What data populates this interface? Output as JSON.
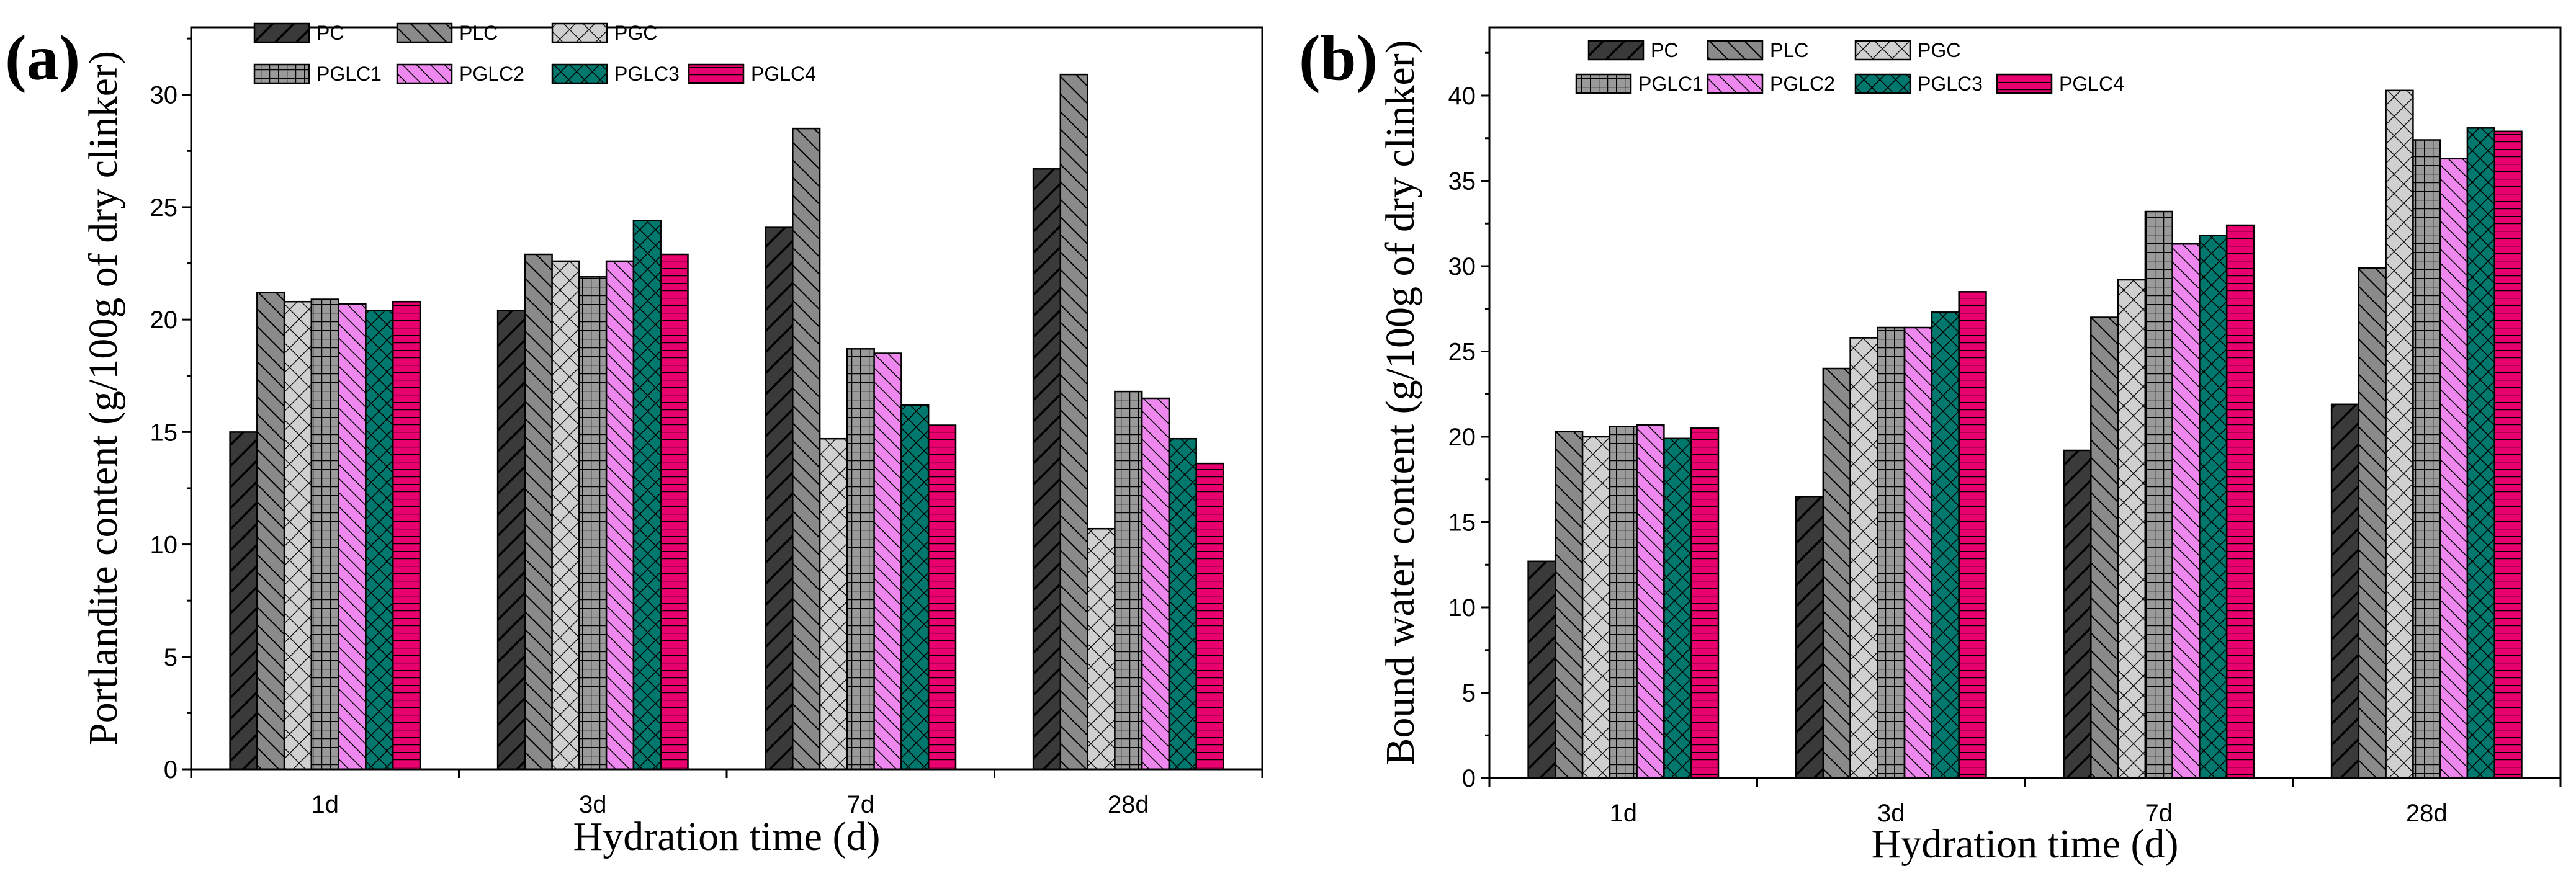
{
  "chart_data": [
    {
      "panel_label": "(a)",
      "type": "bar",
      "title": "",
      "xlabel": "Hydration time (d)",
      "ylabel": "Portlandite content (g/100g of dry clinker)",
      "categories": [
        "1d",
        "3d",
        "7d",
        "28d"
      ],
      "ylim": [
        0,
        33
      ],
      "yticks": [
        0,
        5,
        10,
        15,
        20,
        25,
        30
      ],
      "legend_position": "top-left",
      "series": [
        {
          "name": "PC",
          "pattern": "pc",
          "values": [
            15.0,
            20.4,
            24.1,
            26.7
          ]
        },
        {
          "name": "PLC",
          "pattern": "plc",
          "values": [
            21.2,
            22.9,
            28.5,
            30.9
          ]
        },
        {
          "name": "PGC",
          "pattern": "pgc",
          "values": [
            20.8,
            22.6,
            14.7,
            10.7
          ]
        },
        {
          "name": "PGLC1",
          "pattern": "pglc1",
          "values": [
            20.9,
            21.9,
            18.7,
            16.8
          ]
        },
        {
          "name": "PGLC2",
          "pattern": "pglc2",
          "values": [
            20.7,
            22.6,
            18.5,
            16.5
          ]
        },
        {
          "name": "PGLC3",
          "pattern": "pglc3",
          "values": [
            20.4,
            24.4,
            16.2,
            14.7
          ]
        },
        {
          "name": "PGLC4",
          "pattern": "pglc4",
          "values": [
            20.8,
            22.9,
            15.3,
            13.6
          ]
        }
      ]
    },
    {
      "panel_label": "(b)",
      "type": "bar",
      "title": "",
      "xlabel": "Hydration time (d)",
      "ylabel": "Bound water content (g/100g of dry clinker)",
      "categories": [
        "1d",
        "3d",
        "7d",
        "28d"
      ],
      "ylim": [
        0,
        44
      ],
      "yticks": [
        0,
        5,
        10,
        15,
        20,
        25,
        30,
        35,
        40
      ],
      "legend_position": "top-left",
      "series": [
        {
          "name": "PC",
          "pattern": "pc",
          "values": [
            12.7,
            16.5,
            19.2,
            21.9
          ]
        },
        {
          "name": "PLC",
          "pattern": "plc",
          "values": [
            20.3,
            24.0,
            27.0,
            29.9
          ]
        },
        {
          "name": "PGC",
          "pattern": "pgc",
          "values": [
            20.0,
            25.8,
            29.2,
            40.3
          ]
        },
        {
          "name": "PGLC1",
          "pattern": "pglc1",
          "values": [
            20.6,
            26.4,
            33.2,
            37.4
          ]
        },
        {
          "name": "PGLC2",
          "pattern": "pglc2",
          "values": [
            20.7,
            26.4,
            31.3,
            36.3
          ]
        },
        {
          "name": "PGLC3",
          "pattern": "pglc3",
          "values": [
            19.9,
            27.3,
            31.8,
            38.1
          ]
        },
        {
          "name": "PGLC4",
          "pattern": "pglc4",
          "values": [
            20.5,
            28.5,
            32.4,
            37.9
          ]
        }
      ]
    }
  ],
  "styles": {
    "pc": {
      "fill": "#3a3a3a",
      "line": "#000000"
    },
    "plc": {
      "fill": "#8a8a8a",
      "line": "#000000"
    },
    "pgc": {
      "fill": "#d0d0d0",
      "line": "#000000"
    },
    "pglc1": {
      "fill": "#8f8f8f",
      "line": "#000000"
    },
    "pglc2": {
      "fill": "#ee88ee",
      "line": "#000000"
    },
    "pglc3": {
      "fill": "#00786e",
      "line": "#000000"
    },
    "pglc4": {
      "fill": "#e8006e",
      "line": "#000000"
    }
  }
}
